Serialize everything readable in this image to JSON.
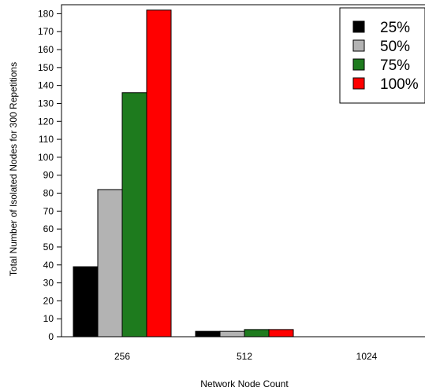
{
  "chart_data": {
    "type": "bar",
    "categories": [
      "256",
      "512",
      "1024"
    ],
    "series": [
      {
        "name": "25%",
        "color": "#000000",
        "values": [
          39,
          3,
          0
        ]
      },
      {
        "name": "50%",
        "color": "#b3b3b3",
        "values": [
          82,
          3,
          0
        ]
      },
      {
        "name": "75%",
        "color": "#1e7b1e",
        "values": [
          136,
          4,
          0
        ]
      },
      {
        "name": "100%",
        "color": "#ff0000",
        "values": [
          182,
          4,
          0
        ]
      }
    ],
    "title": "",
    "xlabel": "Network Node Count",
    "ylabel": "Total Number of Isolated Nodes for 300 Repetitions",
    "ylim": [
      0,
      185
    ],
    "yticks": [
      0,
      10,
      20,
      30,
      40,
      50,
      60,
      70,
      80,
      90,
      100,
      110,
      120,
      130,
      140,
      150,
      160,
      170,
      180
    ],
    "grid": false,
    "legend_position": "top-right"
  }
}
